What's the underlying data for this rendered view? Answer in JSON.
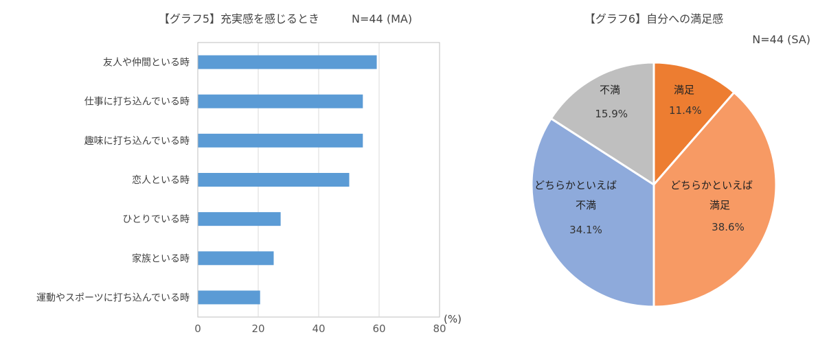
{
  "chart_data": [
    {
      "type": "bar",
      "orientation": "horizontal",
      "title": "【グラフ5】充実感を感じるとき",
      "subtitle": "N=44 (MA)",
      "unit_label": "(%)",
      "categories": [
        "友人や仲間といる時",
        "仕事に打ち込んでいる時",
        "趣味に打ち込んでいる時",
        "恋人といる時",
        "ひとりでいる時",
        "家族といる時",
        "運動やスポーツに打ち込んでいる時"
      ],
      "values": [
        59.1,
        54.5,
        54.5,
        50.0,
        27.3,
        25.0,
        20.5
      ],
      "xlim": [
        0,
        80
      ],
      "xticks": [
        0,
        20,
        40,
        60,
        80
      ],
      "grid": true,
      "bar_color": "#5b9bd5"
    },
    {
      "type": "pie",
      "title": "【グラフ6】自分への満足感",
      "subtitle": "N=44 (SA)",
      "slices": [
        {
          "label": "満足",
          "value": 11.4,
          "display": "11.4%",
          "color": "#ed7d31"
        },
        {
          "label": "どちらかといえば 満足",
          "line1": "どちらかといえば",
          "line2": "満足",
          "value": 38.6,
          "display": "38.6%",
          "color": "#f79a64"
        },
        {
          "label": "どちらかといえば 不満",
          "line1": "どちらかといえば",
          "line2": "不満",
          "value": 34.1,
          "display": "34.1%",
          "color": "#8eaadb"
        },
        {
          "label": "不満",
          "value": 15.9,
          "display": "15.9%",
          "color": "#bfbfbf"
        }
      ]
    }
  ]
}
